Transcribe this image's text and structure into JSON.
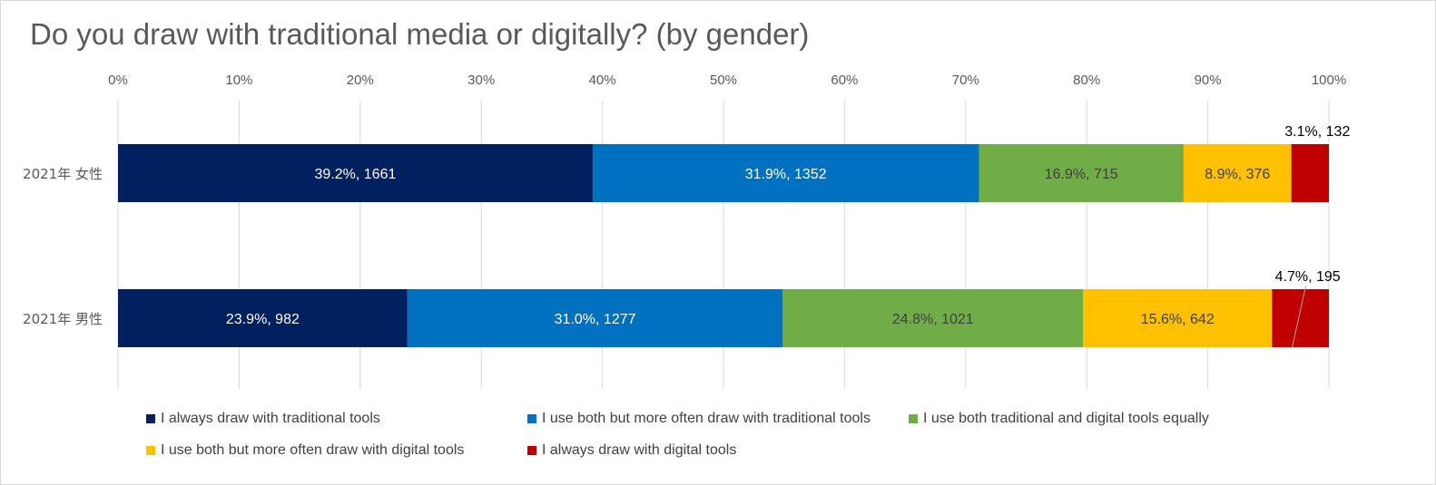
{
  "chart_data": {
    "type": "bar",
    "orientation": "horizontal",
    "stacked": "100%",
    "title": "Do you draw with traditional media or digitally? (by gender)",
    "categories": [
      "2021年 女性",
      "2021年 男性"
    ],
    "x_ticks": [
      "0%",
      "10%",
      "20%",
      "30%",
      "40%",
      "50%",
      "60%",
      "70%",
      "80%",
      "90%",
      "100%"
    ],
    "xlim": [
      0,
      100
    ],
    "grid": "vertical",
    "legend_position": "bottom",
    "series": [
      {
        "name": "I always draw with traditional tools",
        "color": "#002060",
        "values": [
          39.2,
          23.9
        ],
        "counts": [
          1661,
          982
        ],
        "labels": [
          "39.2%, 1661",
          "23.9%, 982"
        ]
      },
      {
        "name": "I use both but more often draw with traditional tools",
        "color": "#0070C0",
        "values": [
          31.9,
          31.0
        ],
        "counts": [
          1352,
          1277
        ],
        "labels": [
          "31.9%, 1352",
          "31.0%, 1277"
        ]
      },
      {
        "name": "I use both traditional and digital tools equally",
        "color": "#70AD47",
        "values": [
          16.9,
          24.8
        ],
        "counts": [
          715,
          1021
        ],
        "labels": [
          "16.9%, 715",
          "24.8%, 1021"
        ]
      },
      {
        "name": "I use both but more often draw with digital tools",
        "color": "#FFC000",
        "values": [
          8.9,
          15.6
        ],
        "counts": [
          376,
          642
        ],
        "labels": [
          "8.9%, 376",
          "15.6%, 642"
        ]
      },
      {
        "name": "I always draw with digital tools",
        "color": "#C00000",
        "values": [
          3.1,
          4.7
        ],
        "counts": [
          132,
          195
        ],
        "labels": [
          "3.1%, 132",
          "4.7%, 195"
        ]
      }
    ]
  }
}
